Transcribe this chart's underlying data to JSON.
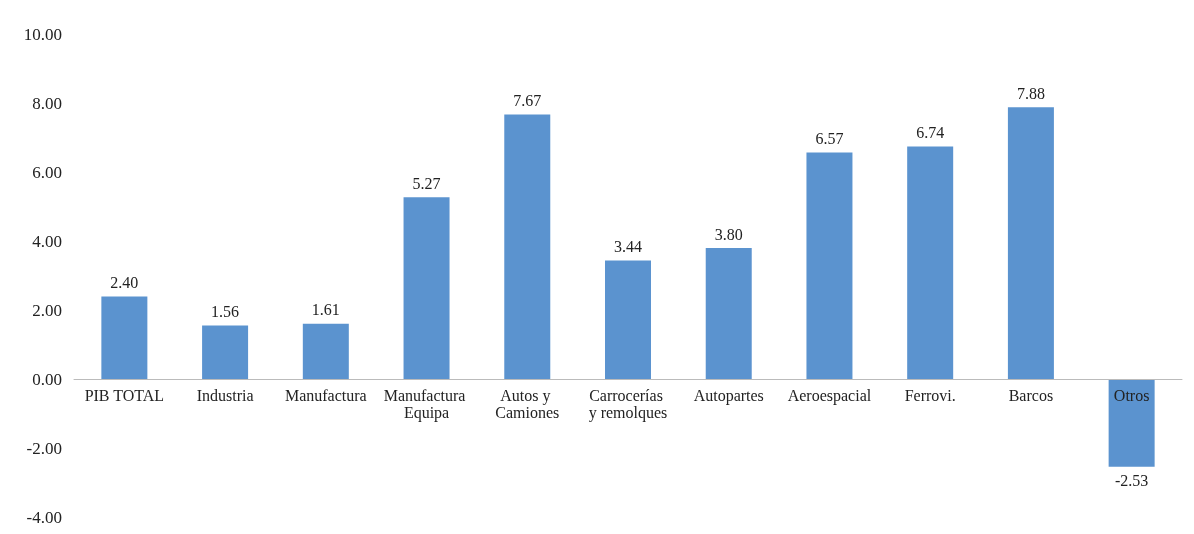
{
  "chart_data": {
    "type": "bar",
    "categories": [
      "PIB TOTAL",
      "Industria",
      "Manufactura",
      "Manufactura Equipa",
      "Autos y Camiones",
      "Carrocerías y remolques",
      "Autopartes",
      "Aeroespacial",
      "Ferrovi.",
      "Barcos",
      "Otros"
    ],
    "values": [
      2.4,
      1.56,
      1.61,
      5.27,
      7.67,
      3.44,
      3.8,
      6.57,
      6.74,
      7.88,
      -2.53
    ],
    "value_labels": [
      "2.40",
      "1.56",
      "1.61",
      "5.27",
      "7.67",
      "3.44",
      "3.80",
      "6.57",
      "6.74",
      "7.88",
      "-2.53"
    ],
    "color": "#5b93cf",
    "ylim": [
      -4,
      10
    ],
    "yticks": [
      {
        "value": -4,
        "label": "-4.00"
      },
      {
        "value": -2,
        "label": "-2.00"
      },
      {
        "value": 0,
        "label": "0.00"
      },
      {
        "value": 2,
        "label": "2.00"
      },
      {
        "value": 4,
        "label": "4.00"
      },
      {
        "value": 6,
        "label": "6.00"
      },
      {
        "value": 8,
        "label": "8.00"
      },
      {
        "value": 10,
        "label": "10.00"
      }
    ],
    "grid": false
  }
}
